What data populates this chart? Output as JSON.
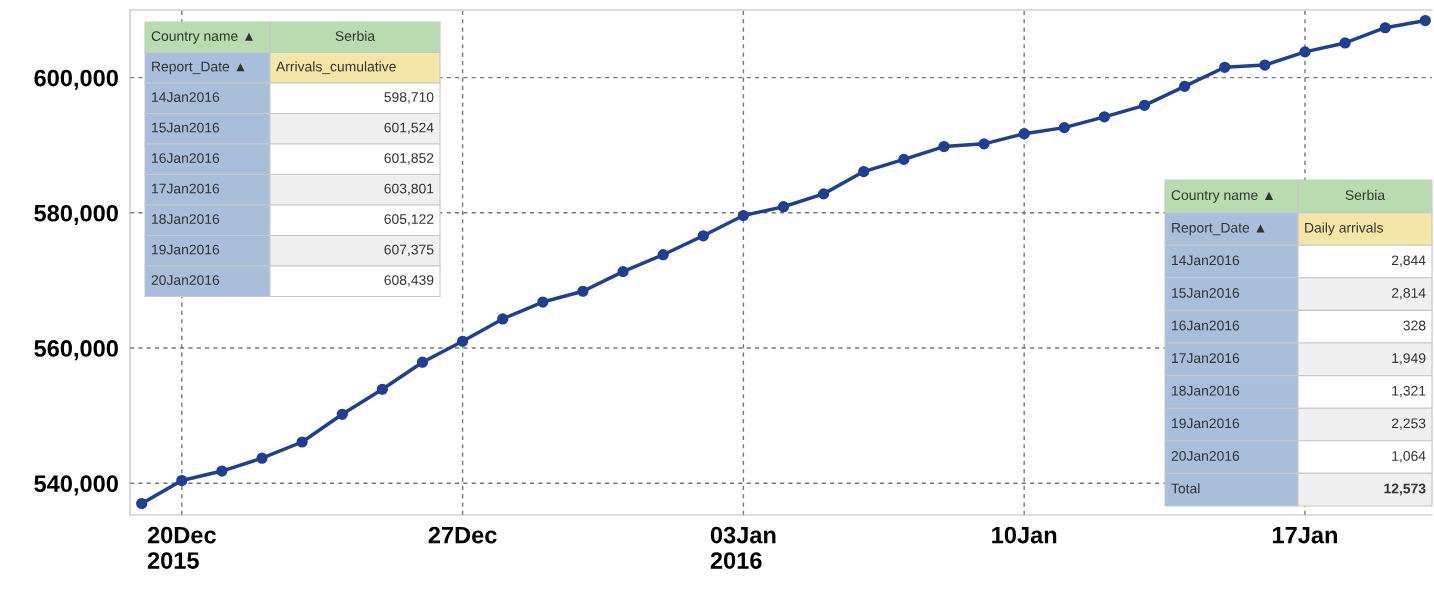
{
  "chart_data": {
    "type": "line",
    "x": [
      "2015-12-19",
      "2015-12-20",
      "2015-12-21",
      "2015-12-22",
      "2015-12-23",
      "2015-12-24",
      "2015-12-25",
      "2015-12-26",
      "2015-12-27",
      "2015-12-28",
      "2015-12-29",
      "2015-12-30",
      "2015-12-31",
      "2016-01-01",
      "2016-01-02",
      "2016-01-03",
      "2016-01-04",
      "2016-01-05",
      "2016-01-06",
      "2016-01-07",
      "2016-01-08",
      "2016-01-09",
      "2016-01-10",
      "2016-01-11",
      "2016-01-12",
      "2016-01-13",
      "2016-01-14",
      "2016-01-15",
      "2016-01-16",
      "2016-01-17",
      "2016-01-18",
      "2016-01-19",
      "2016-01-20"
    ],
    "series": [
      {
        "color": "#1f3f94",
        "values": [
          537000,
          540400,
          541800,
          543700,
          546100,
          550200,
          553900,
          557900,
          561000,
          564300,
          566800,
          568400,
          571300,
          573800,
          576600,
          579600,
          580900,
          582800,
          586100,
          587900,
          589800,
          590200,
          591700,
          592600,
          594200,
          595900,
          598710,
          601524,
          601852,
          603801,
          605122,
          607375,
          608439
        ]
      }
    ],
    "xlim": [
      "2015-12-18T17:00",
      "2016-01-20T04:00"
    ],
    "xticks": [
      {
        "value": "2015-12-20",
        "label": "20Dec\n2015"
      },
      {
        "value": "2015-12-27",
        "label": "27Dec"
      },
      {
        "value": "2016-01-03",
        "label": "03Jan\n2016"
      },
      {
        "value": "2016-01-10",
        "label": "10Jan"
      },
      {
        "value": "2016-01-17",
        "label": "17Jan"
      }
    ],
    "ylim": [
      535300,
      610000
    ],
    "yticks": [
      {
        "value": 540000,
        "label": "540,000"
      },
      {
        "value": 560000,
        "label": "560,000"
      },
      {
        "value": 580000,
        "label": "580,000"
      },
      {
        "value": 600000,
        "label": "600,000"
      }
    ],
    "grid": true,
    "marker": "circle",
    "line_style": "solid",
    "annotations": [
      "Country name ▲",
      "Serbia",
      "Report_Date ▲",
      "Arrivals_cumulative",
      "14Jan2016",
      "598,710",
      "15Jan2016",
      "601,524",
      "16Jan2016",
      "601,852",
      "17Jan2016",
      "603,801",
      "18Jan2016",
      "605,122",
      "19Jan2016",
      "607,375",
      "20Jan2016",
      "608,439",
      "Country name ▲",
      "Serbia",
      "Report_Date ▲",
      "Daily arrivals",
      "14Jan2016",
      "2,844",
      "15Jan2016",
      "2,814",
      "16Jan2016",
      "328",
      "17Jan2016",
      "1,949",
      "18Jan2016",
      "1,321",
      "19Jan2016",
      "2,253",
      "20Jan2016",
      "1,064",
      "Total",
      "12,573"
    ]
  }
}
